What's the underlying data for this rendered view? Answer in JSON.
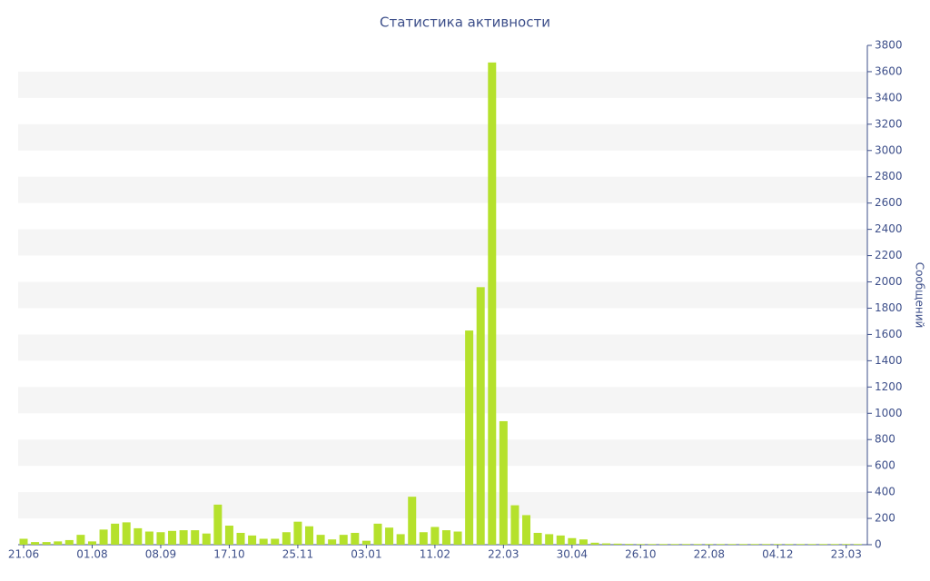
{
  "chart_data": {
    "type": "bar",
    "title": "Статистика активности",
    "y_label": "Сообщений",
    "categories": [
      "21.06",
      null,
      null,
      null,
      null,
      null,
      "01.08",
      null,
      null,
      null,
      null,
      null,
      "08.09",
      null,
      null,
      null,
      null,
      null,
      "17.10",
      null,
      null,
      null,
      null,
      null,
      "25.11",
      null,
      null,
      null,
      null,
      null,
      "03.01",
      null,
      null,
      null,
      null,
      null,
      "11.02",
      null,
      null,
      null,
      null,
      null,
      "22.03",
      null,
      null,
      null,
      null,
      null,
      "30.04",
      null,
      null,
      null,
      null,
      null,
      "26.10",
      null,
      null,
      null,
      null,
      null,
      "22.08",
      null,
      null,
      null,
      null,
      null,
      "04.12",
      null,
      null,
      null,
      null,
      null,
      "23.03",
      null
    ],
    "values": [
      45,
      20,
      20,
      25,
      35,
      75,
      25,
      115,
      160,
      170,
      125,
      100,
      95,
      105,
      110,
      110,
      85,
      305,
      145,
      90,
      70,
      45,
      45,
      95,
      175,
      140,
      75,
      40,
      75,
      90,
      30,
      160,
      130,
      80,
      365,
      95,
      135,
      110,
      100,
      1630,
      1960,
      3670,
      940,
      300,
      225,
      90,
      80,
      70,
      50,
      40,
      15,
      10,
      8,
      6,
      5,
      5,
      5,
      5,
      5,
      5,
      5,
      5,
      5,
      5,
      5,
      5,
      5,
      5,
      5,
      5,
      5,
      5,
      5,
      5
    ],
    "color": "#b5e12c",
    "ylim": [
      0,
      3800
    ],
    "yticks": [
      0,
      200,
      400,
      600,
      800,
      1000,
      1200,
      1400,
      1600,
      1800,
      2000,
      2200,
      2400,
      2600,
      2800,
      3000,
      3200,
      3400,
      3600,
      3800
    ],
    "y_axis_position": "right",
    "grid": true
  }
}
